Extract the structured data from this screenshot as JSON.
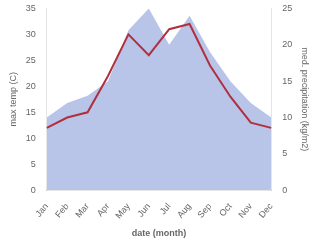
{
  "chart_data": {
    "type": "line",
    "xlabel": "date (month)",
    "ylabel": "max temp (C)",
    "y2label": "med. precipitation (kg/m2)",
    "categories": [
      "Jan",
      "Feb",
      "Mar",
      "Apr",
      "May",
      "Jun",
      "Jul",
      "Aug",
      "Sep",
      "Oct",
      "Nov",
      "Dec"
    ],
    "series": [
      {
        "type": "line",
        "color": "#b03040",
        "axis": "y",
        "values": [
          12,
          14,
          15,
          22,
          30,
          26,
          31,
          32,
          24,
          18,
          13,
          12
        ]
      },
      {
        "type": "area",
        "color": "#b8c4e8",
        "axis": "y2",
        "values": [
          10,
          12,
          13,
          15,
          22,
          25,
          20,
          24,
          19,
          15,
          12,
          10
        ]
      }
    ],
    "ylim": [
      0,
      35
    ],
    "yticks": [
      0,
      5,
      10,
      15,
      20,
      25,
      30,
      35
    ],
    "y2lim": [
      0,
      25
    ],
    "y2ticks": [
      0,
      5,
      10,
      15,
      20,
      25
    ],
    "grid": false
  }
}
